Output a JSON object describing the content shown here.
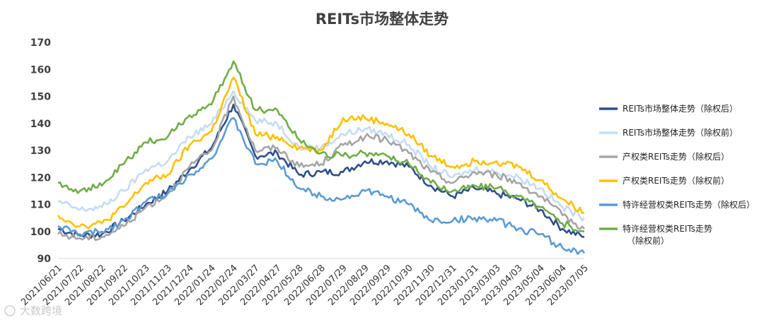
{
  "chart_data": {
    "type": "line",
    "title": "REITs市场整体走势",
    "xlabel": "",
    "ylabel": "",
    "ylim": [
      90,
      170
    ],
    "yticks": [
      90,
      100,
      110,
      120,
      130,
      140,
      150,
      160,
      170
    ],
    "grid": false,
    "legend_position": "right",
    "x": [
      "2021/06/21",
      "2021/07/22",
      "2021/08/22",
      "2021/09/22",
      "2021/10/23",
      "2021/11/23",
      "2021/12/24",
      "2022/01/24",
      "2022/02/24",
      "2022/03/27",
      "2022/04/27",
      "2022/05/28",
      "2022/06/28",
      "2022/07/29",
      "2022/08/29",
      "2022/09/29",
      "2022/10/30",
      "2022/11/30",
      "2022/12/31",
      "2023/01/31",
      "2023/03/03",
      "2023/04/03",
      "2023/05/04",
      "2023/06/04",
      "2023/07/05"
    ],
    "series": [
      {
        "name": "REITs市场整体走势（除权后）",
        "color": "#2E4F8C",
        "values": [
          101,
          98.5,
          99,
          104,
          110,
          115,
          123,
          131,
          147,
          128,
          129,
          121,
          122,
          122,
          126,
          126,
          124,
          117,
          113,
          116,
          114,
          112,
          108,
          101,
          98
        ]
      },
      {
        "name": "REITs市场整体走势（除权前）",
        "color": "#C5DCF4",
        "values": [
          111,
          108,
          109,
          115,
          123,
          126,
          135,
          140,
          152,
          141,
          140,
          131,
          131,
          136,
          138,
          136,
          132,
          124,
          120,
          123,
          122,
          120,
          116,
          109,
          105
        ]
      },
      {
        "name": "产权类REITs走势（除权后）",
        "color": "#A5A5A5",
        "values": [
          99,
          97.5,
          98,
          102,
          109,
          114,
          124,
          130,
          150,
          130,
          131,
          124,
          125,
          132,
          135,
          134,
          129,
          122,
          118,
          122,
          121,
          118,
          113,
          106,
          101
        ]
      },
      {
        "name": "产权类REITs走势（除权前）",
        "color": "#FFC000",
        "values": [
          106,
          102,
          103,
          109,
          118,
          121,
          132,
          137,
          157,
          136,
          135,
          131,
          130,
          142,
          142,
          140,
          136,
          128,
          124,
          126,
          126,
          124,
          119,
          112,
          107
        ]
      },
      {
        "name": "特许经营权类REITs走势（除权后）",
        "color": "#5B9BD5",
        "values": [
          102,
          99,
          100,
          104,
          111,
          114,
          121,
          127,
          142,
          125,
          126,
          116,
          113,
          112,
          115,
          113,
          110,
          104,
          104,
          105,
          104,
          101,
          99,
          94,
          92
        ]
      },
      {
        "name": "特许经营权类REITs走势（除权前）",
        "color": "#70AD47",
        "values": [
          118,
          115,
          117,
          125,
          133,
          135,
          143,
          147,
          163,
          145,
          145,
          134,
          129,
          128,
          129,
          128,
          125,
          118,
          115,
          117,
          116,
          113,
          109,
          103,
          100
        ]
      }
    ]
  },
  "watermark": "大数跨境"
}
